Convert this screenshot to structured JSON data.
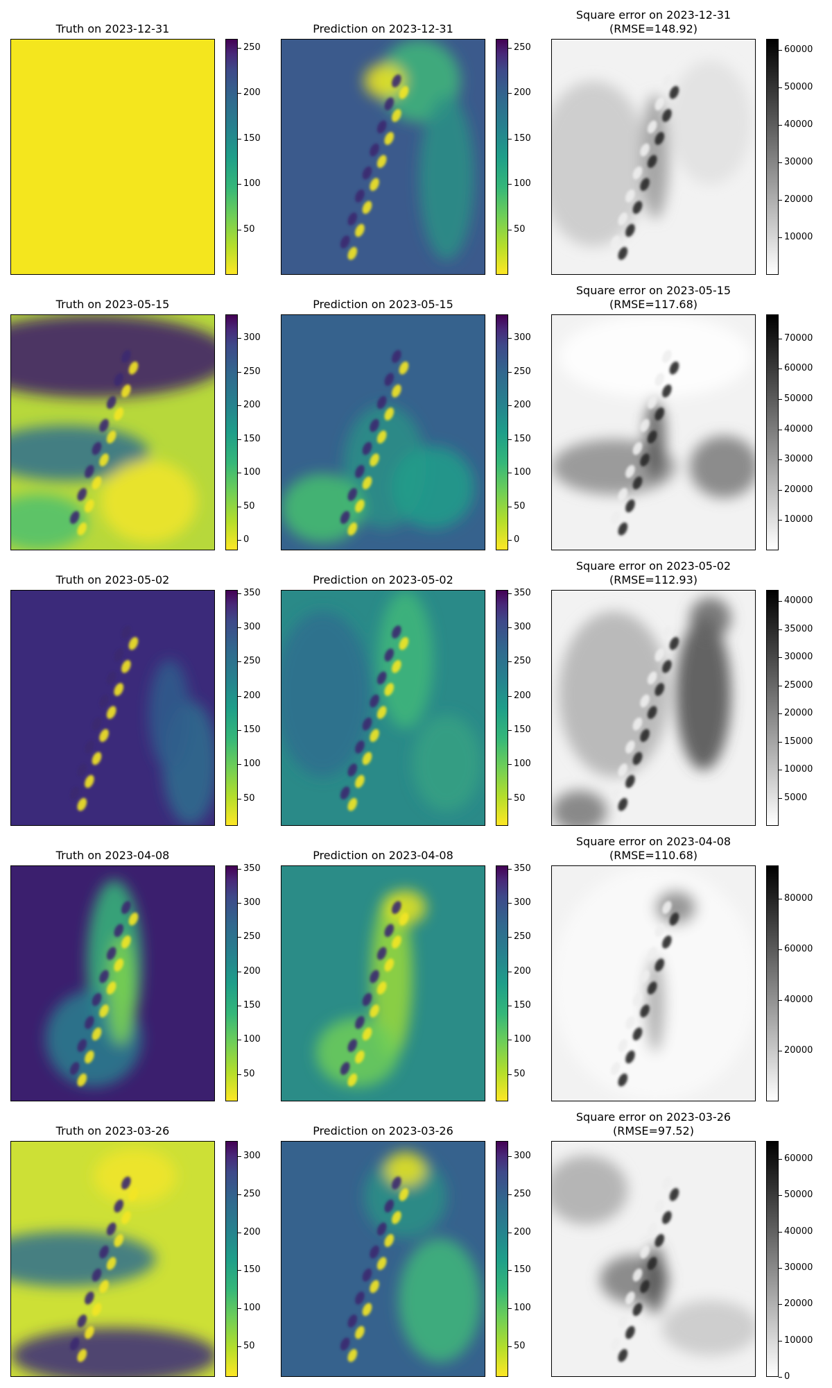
{
  "chart_data": [
    {
      "type": "heatmap",
      "row": 0,
      "col": 0,
      "title": "Truth on 2023-12-31",
      "colormap": "viridis_r",
      "colorbar_ticks": [
        50,
        100,
        150,
        200,
        250
      ],
      "colorbar_range": [
        0,
        260
      ]
    },
    {
      "type": "heatmap",
      "row": 0,
      "col": 1,
      "title": "Prediction on 2023-12-31",
      "colormap": "viridis_r",
      "colorbar_ticks": [
        50,
        100,
        150,
        200,
        250
      ],
      "colorbar_range": [
        0,
        260
      ]
    },
    {
      "type": "heatmap",
      "row": 0,
      "col": 2,
      "title": "Square error on 2023-12-31",
      "title2": "(RMSE=148.92)",
      "rmse": 148.92,
      "colormap": "gray_r",
      "colorbar_ticks": [
        10000,
        20000,
        30000,
        40000,
        50000,
        60000
      ],
      "colorbar_range": [
        0,
        63000
      ]
    },
    {
      "type": "heatmap",
      "row": 1,
      "col": 0,
      "title": "Truth on 2023-05-15",
      "colormap": "viridis_r",
      "colorbar_ticks": [
        0,
        50,
        100,
        150,
        200,
        250,
        300
      ],
      "colorbar_range": [
        -15,
        335
      ]
    },
    {
      "type": "heatmap",
      "row": 1,
      "col": 1,
      "title": "Prediction on 2023-05-15",
      "colormap": "viridis_r",
      "colorbar_ticks": [
        0,
        50,
        100,
        150,
        200,
        250,
        300
      ],
      "colorbar_range": [
        -15,
        335
      ]
    },
    {
      "type": "heatmap",
      "row": 1,
      "col": 2,
      "title": "Square error on 2023-05-15",
      "title2": "(RMSE=117.68)",
      "rmse": 117.68,
      "colormap": "gray_r",
      "colorbar_ticks": [
        10000,
        20000,
        30000,
        40000,
        50000,
        60000,
        70000
      ],
      "colorbar_range": [
        0,
        78000
      ]
    },
    {
      "type": "heatmap",
      "row": 2,
      "col": 0,
      "title": "Truth on 2023-05-02",
      "colormap": "viridis_r",
      "colorbar_ticks": [
        50,
        100,
        150,
        200,
        250,
        300,
        350
      ],
      "colorbar_range": [
        10,
        355
      ]
    },
    {
      "type": "heatmap",
      "row": 2,
      "col": 1,
      "title": "Prediction on 2023-05-02",
      "colormap": "viridis_r",
      "colorbar_ticks": [
        50,
        100,
        150,
        200,
        250,
        300,
        350
      ],
      "colorbar_range": [
        10,
        355
      ]
    },
    {
      "type": "heatmap",
      "row": 2,
      "col": 2,
      "title": "Square error on 2023-05-02",
      "title2": "(RMSE=112.93)",
      "rmse": 112.93,
      "colormap": "gray_r",
      "colorbar_ticks": [
        5000,
        10000,
        15000,
        20000,
        25000,
        30000,
        35000,
        40000
      ],
      "colorbar_range": [
        0,
        42000
      ]
    },
    {
      "type": "heatmap",
      "row": 3,
      "col": 0,
      "title": "Truth on 2023-04-08",
      "colormap": "viridis_r",
      "colorbar_ticks": [
        50,
        100,
        150,
        200,
        250,
        300,
        350
      ],
      "colorbar_range": [
        10,
        355
      ]
    },
    {
      "type": "heatmap",
      "row": 3,
      "col": 1,
      "title": "Prediction on 2023-04-08",
      "colormap": "viridis_r",
      "colorbar_ticks": [
        50,
        100,
        150,
        200,
        250,
        300,
        350
      ],
      "colorbar_range": [
        10,
        355
      ]
    },
    {
      "type": "heatmap",
      "row": 3,
      "col": 2,
      "title": "Square error on 2023-04-08",
      "title2": "(RMSE=110.68)",
      "rmse": 110.68,
      "colormap": "gray_r",
      "colorbar_ticks": [
        20000,
        40000,
        60000,
        80000
      ],
      "colorbar_range": [
        0,
        93000
      ]
    },
    {
      "type": "heatmap",
      "row": 4,
      "col": 0,
      "title": "Truth on 2023-03-26",
      "colormap": "viridis_r",
      "colorbar_ticks": [
        50,
        100,
        150,
        200,
        250,
        300
      ],
      "colorbar_range": [
        10,
        320
      ]
    },
    {
      "type": "heatmap",
      "row": 4,
      "col": 1,
      "title": "Prediction on 2023-03-26",
      "colormap": "viridis_r",
      "colorbar_ticks": [
        50,
        100,
        150,
        200,
        250,
        300
      ],
      "colorbar_range": [
        10,
        320
      ]
    },
    {
      "type": "heatmap",
      "row": 4,
      "col": 2,
      "title": "Square error on 2023-03-26",
      "title2": "(RMSE=97.52)",
      "rmse": 97.52,
      "colormap": "gray_r",
      "colorbar_ticks": [
        0,
        10000,
        20000,
        30000,
        40000,
        50000,
        60000
      ],
      "colorbar_range": [
        0,
        65000
      ]
    }
  ]
}
